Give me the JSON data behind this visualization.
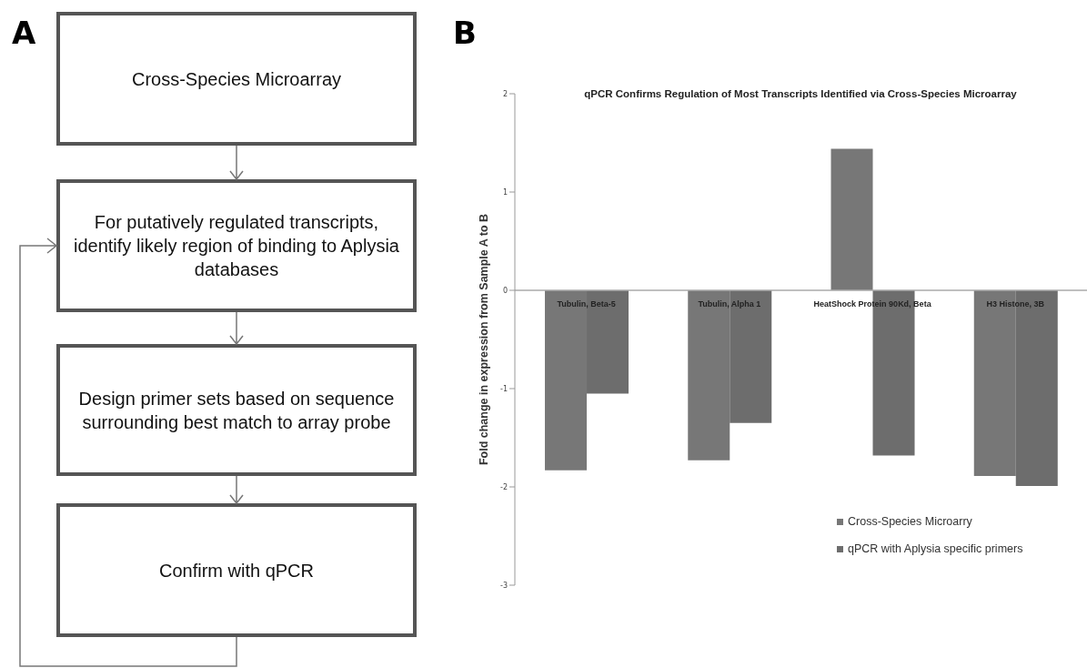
{
  "chart_data": [
    {
      "type": "other",
      "annotations": [
        "A",
        "Cross-Species Microarray",
        "For putatively regulated transcripts, identify likely region of binding to Aplysia databases",
        "Design primer sets based on sequence surrounding best match to array probe",
        "Confirm with qPCR"
      ]
    },
    {
      "type": "bar",
      "title": "qPCR Confirms Regulation of Most Transcripts Identified via Cross-Species Microarray",
      "ylabel": "Fold change in expression from Sample A to B",
      "annotations": [
        "B"
      ],
      "categories": [
        "Tubulin, Beta-5",
        "Tubulin, Alpha 1",
        "HeatShock Protein 90Kd, Beta",
        "H3 Histone, 3B"
      ],
      "series": [
        {
          "name": "Cross-Species Microarry",
          "color": "#777777",
          "values": [
            -1.83,
            -1.73,
            1.44,
            -1.89
          ]
        },
        {
          "name": "qPCR with Aplysia specific primers",
          "color": "#6d6d6d",
          "values": [
            -1.05,
            -1.35,
            -1.68,
            -1.99
          ]
        }
      ],
      "ylim": [
        -3,
        2
      ],
      "yticks": [
        -3,
        -2,
        -1,
        0,
        1,
        2
      ],
      "grid": false,
      "legend": "bottom right"
    }
  ]
}
